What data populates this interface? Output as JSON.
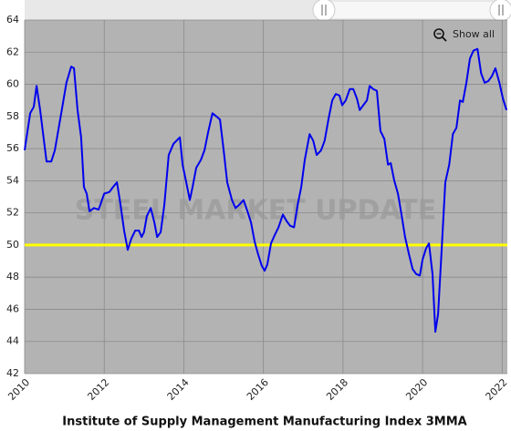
{
  "chart_data": {
    "type": "line",
    "title": "Institute of Supply Management Manufacturing Index 3MMA",
    "watermark": "STEEL MARKET UPDATE",
    "button": "Show all",
    "color": "#0000ee",
    "grid": true,
    "reference_line": {
      "value": 50,
      "color": "#ffff00"
    },
    "xlim": [
      2010,
      2022.13
    ],
    "xticks": [
      2010,
      2012,
      2014,
      2016,
      2018,
      2020,
      2022
    ],
    "ylim": [
      42,
      64
    ],
    "yticks": [
      42,
      44,
      46,
      48,
      50,
      52,
      54,
      56,
      58,
      60,
      62,
      64
    ],
    "x": [
      2010.0,
      2010.14,
      2010.23,
      2010.3,
      2010.39,
      2010.55,
      2010.67,
      2010.76,
      2010.9,
      2011.05,
      2011.17,
      2011.24,
      2011.33,
      2011.42,
      2011.49,
      2011.56,
      2011.63,
      2011.74,
      2011.86,
      2012.0,
      2012.13,
      2012.22,
      2012.32,
      2012.41,
      2012.5,
      2012.59,
      2012.68,
      2012.78,
      2012.87,
      2012.94,
      2013.0,
      2013.07,
      2013.17,
      2013.26,
      2013.33,
      2013.42,
      2013.51,
      2013.62,
      2013.74,
      2013.9,
      2013.97,
      2014.06,
      2014.15,
      2014.22,
      2014.31,
      2014.43,
      2014.52,
      2014.61,
      2014.72,
      2014.82,
      2014.91,
      2015.0,
      2015.09,
      2015.21,
      2015.3,
      2015.39,
      2015.5,
      2015.6,
      2015.69,
      2015.78,
      2015.87,
      2015.96,
      2016.03,
      2016.1,
      2016.19,
      2016.28,
      2016.38,
      2016.49,
      2016.58,
      2016.67,
      2016.77,
      2016.86,
      2016.95,
      2017.04,
      2017.16,
      2017.25,
      2017.34,
      2017.45,
      2017.54,
      2017.64,
      2017.73,
      2017.82,
      2017.91,
      2017.98,
      2018.07,
      2018.17,
      2018.26,
      2018.35,
      2018.42,
      2018.51,
      2018.6,
      2018.67,
      2018.76,
      2018.85,
      2018.94,
      2019.04,
      2019.13,
      2019.2,
      2019.29,
      2019.38,
      2019.47,
      2019.56,
      2019.66,
      2019.75,
      2019.84,
      2019.93,
      2020.0,
      2020.09,
      2020.16,
      2020.25,
      2020.32,
      2020.39,
      2020.48,
      2020.57,
      2020.67,
      2020.76,
      2020.85,
      2020.94,
      2021.01,
      2021.1,
      2021.19,
      2021.28,
      2021.38,
      2021.47,
      2021.56,
      2021.65,
      2021.74,
      2021.83,
      2021.93,
      2022.02,
      2022.11
    ],
    "values": [
      55.9,
      58.2,
      58.6,
      59.9,
      58.4,
      55.2,
      55.2,
      55.9,
      57.9,
      60.1,
      61.1,
      61.0,
      58.4,
      56.7,
      53.6,
      53.2,
      52.1,
      52.3,
      52.2,
      53.2,
      53.3,
      53.6,
      53.9,
      52.5,
      50.9,
      49.7,
      50.4,
      50.9,
      50.9,
      50.5,
      50.8,
      51.8,
      52.3,
      51.4,
      50.5,
      50.8,
      52.5,
      55.6,
      56.3,
      56.7,
      55.0,
      53.9,
      52.8,
      53.6,
      54.8,
      55.3,
      55.9,
      57.0,
      58.2,
      58.0,
      57.8,
      55.9,
      53.9,
      52.8,
      52.3,
      52.5,
      52.8,
      52.1,
      51.4,
      50.2,
      49.4,
      48.7,
      48.4,
      48.8,
      50.1,
      50.6,
      51.1,
      51.9,
      51.5,
      51.2,
      51.1,
      52.5,
      53.6,
      55.3,
      56.9,
      56.5,
      55.6,
      55.9,
      56.5,
      57.9,
      59.0,
      59.4,
      59.3,
      58.7,
      59.0,
      59.7,
      59.7,
      59.1,
      58.4,
      58.7,
      59.0,
      59.9,
      59.7,
      59.6,
      57.1,
      56.6,
      55.0,
      55.1,
      54.0,
      53.2,
      51.9,
      50.5,
      49.4,
      48.5,
      48.2,
      48.1,
      49.1,
      49.8,
      50.1,
      48.2,
      44.6,
      45.7,
      49.7,
      53.9,
      55.0,
      56.9,
      57.3,
      59.0,
      58.9,
      60.1,
      61.6,
      62.1,
      62.2,
      60.7,
      60.1,
      60.2,
      60.5,
      61.0,
      60.1,
      59.1,
      58.4
    ]
  }
}
